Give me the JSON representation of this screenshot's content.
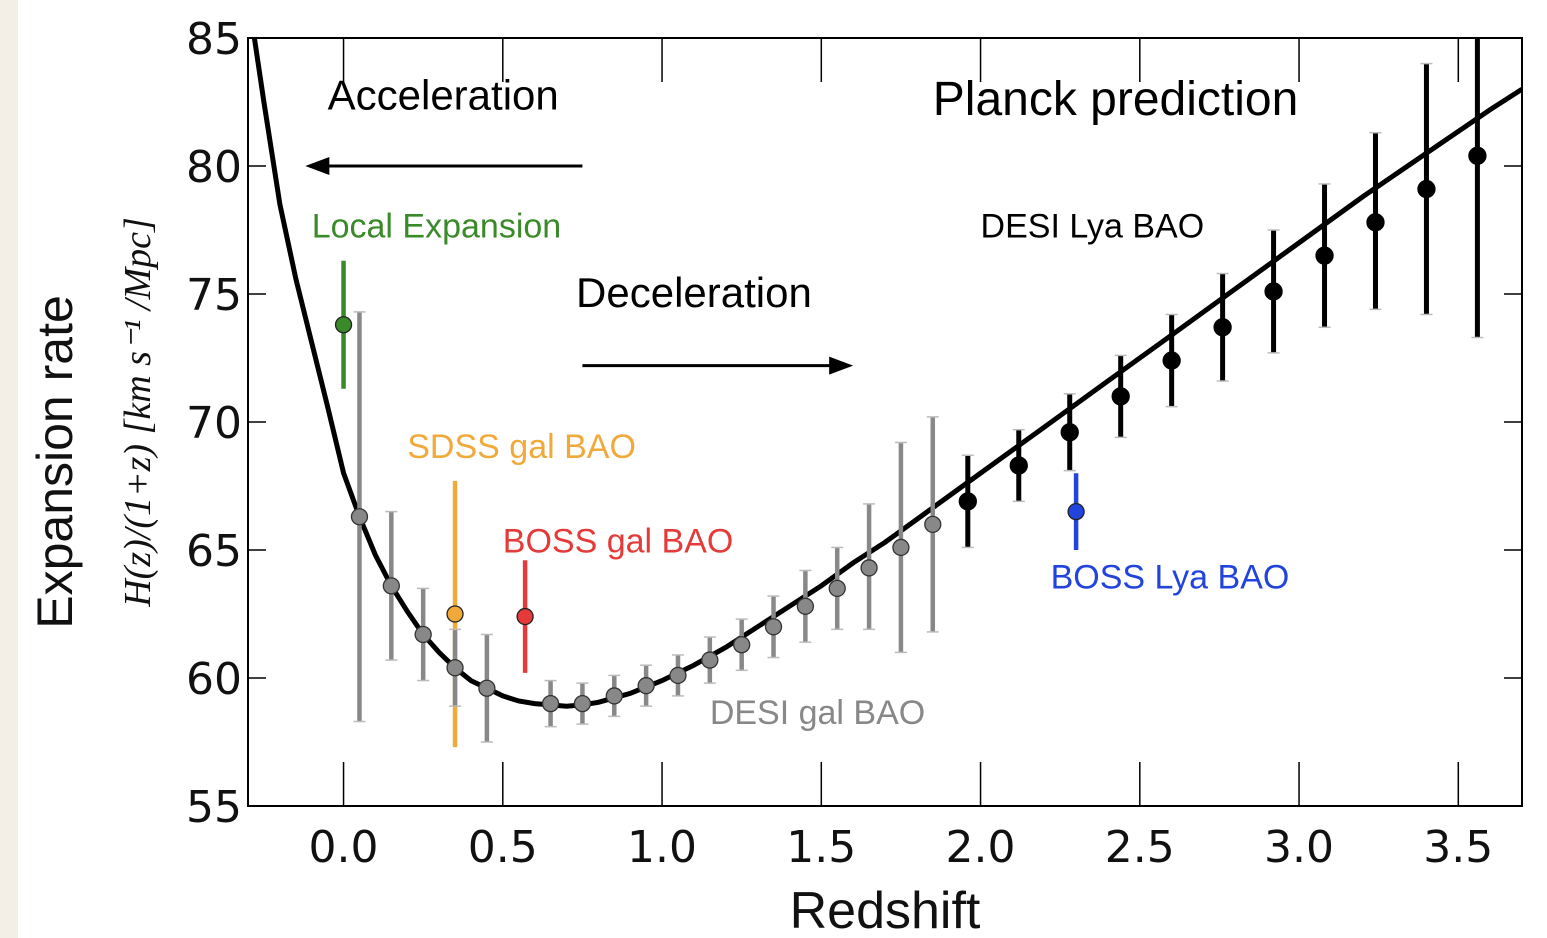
{
  "chart_data": {
    "type": "scatter",
    "xlabel": "Redshift",
    "ylabel": "Expansion rate",
    "ylabel_formula": "H(z)/(1+z) [km s⁻¹ /Mpc]",
    "xlim": [
      -0.3,
      3.7
    ],
    "ylim": [
      55,
      85
    ],
    "xticks": [
      0.0,
      0.5,
      1.0,
      1.5,
      2.0,
      2.5,
      3.0,
      3.5
    ],
    "xtick_labels": [
      "0.0",
      "0.5",
      "1.0",
      "1.5",
      "2.0",
      "2.5",
      "3.0",
      "3.5"
    ],
    "yticks": [
      55,
      60,
      65,
      70,
      75,
      80,
      85
    ],
    "ytick_labels": [
      "55",
      "60",
      "65",
      "70",
      "75",
      "80",
      "85"
    ],
    "grid": false,
    "model_curve": {
      "name": "Planck prediction",
      "color": "#000000",
      "x": [
        -0.28,
        -0.25,
        -0.2,
        -0.15,
        -0.1,
        -0.05,
        0.0,
        0.05,
        0.1,
        0.15,
        0.2,
        0.25,
        0.3,
        0.35,
        0.4,
        0.45,
        0.5,
        0.55,
        0.6,
        0.65,
        0.7,
        0.75,
        0.8,
        0.9,
        1.0,
        1.1,
        1.2,
        1.3,
        1.4,
        1.5,
        1.6,
        1.7,
        1.8,
        1.9,
        2.0,
        2.2,
        2.4,
        2.6,
        2.8,
        3.0,
        3.2,
        3.4,
        3.6,
        3.7
      ],
      "y": [
        85,
        82.5,
        78.5,
        75.6,
        73.1,
        70.6,
        68.0,
        66.3,
        64.8,
        63.6,
        62.6,
        61.7,
        61.0,
        60.4,
        59.9,
        59.6,
        59.3,
        59.1,
        59.0,
        58.95,
        58.9,
        58.95,
        59.05,
        59.4,
        59.9,
        60.5,
        61.2,
        62.0,
        62.8,
        63.6,
        64.5,
        65.3,
        66.2,
        67.1,
        68.0,
        69.8,
        71.6,
        73.4,
        75.2,
        77.0,
        78.8,
        80.5,
        82.2,
        83.0
      ]
    },
    "series": [
      {
        "name": "Local Expansion",
        "color": "#3a8a2a",
        "points": [
          {
            "x": 0.0,
            "y": 73.8,
            "lo": 71.3,
            "hi": 76.3
          }
        ]
      },
      {
        "name": "SDSS gal BAO",
        "color": "#f0a93a",
        "points": [
          {
            "x": 0.35,
            "y": 62.5,
            "lo": 57.3,
            "hi": 67.7
          }
        ]
      },
      {
        "name": "BOSS gal BAO",
        "color": "#e53a3a",
        "points": [
          {
            "x": 0.57,
            "y": 62.4,
            "lo": 60.2,
            "hi": 64.6
          }
        ]
      },
      {
        "name": "BOSS Lya BAO",
        "color": "#2244dd",
        "points": [
          {
            "x": 2.3,
            "y": 66.5,
            "lo": 65.0,
            "hi": 68.0
          }
        ]
      },
      {
        "name": "DESI gal BAO",
        "color": "#888888",
        "points": [
          {
            "x": 0.05,
            "y": 66.3,
            "lo": 58.3,
            "hi": 74.3
          },
          {
            "x": 0.15,
            "y": 63.6,
            "lo": 60.7,
            "hi": 66.5
          },
          {
            "x": 0.25,
            "y": 61.7,
            "lo": 59.9,
            "hi": 63.5
          },
          {
            "x": 0.35,
            "y": 60.4,
            "lo": 58.9,
            "hi": 61.9
          },
          {
            "x": 0.45,
            "y": 59.6,
            "lo": 57.5,
            "hi": 61.7
          },
          {
            "x": 0.65,
            "y": 59.0,
            "lo": 58.1,
            "hi": 59.9
          },
          {
            "x": 0.75,
            "y": 59.0,
            "lo": 58.2,
            "hi": 59.8
          },
          {
            "x": 0.85,
            "y": 59.3,
            "lo": 58.5,
            "hi": 60.1
          },
          {
            "x": 0.95,
            "y": 59.7,
            "lo": 58.9,
            "hi": 60.5
          },
          {
            "x": 1.05,
            "y": 60.1,
            "lo": 59.3,
            "hi": 60.9
          },
          {
            "x": 1.15,
            "y": 60.7,
            "lo": 59.8,
            "hi": 61.6
          },
          {
            "x": 1.25,
            "y": 61.3,
            "lo": 60.3,
            "hi": 62.3
          },
          {
            "x": 1.35,
            "y": 62.0,
            "lo": 60.8,
            "hi": 63.2
          },
          {
            "x": 1.45,
            "y": 62.8,
            "lo": 61.4,
            "hi": 64.2
          },
          {
            "x": 1.55,
            "y": 63.5,
            "lo": 61.9,
            "hi": 65.1
          },
          {
            "x": 1.65,
            "y": 64.3,
            "lo": 61.9,
            "hi": 66.8
          },
          {
            "x": 1.75,
            "y": 65.1,
            "lo": 61.0,
            "hi": 69.2
          },
          {
            "x": 1.85,
            "y": 66.0,
            "lo": 61.8,
            "hi": 70.2
          }
        ]
      },
      {
        "name": "DESI Lya BAO",
        "color": "#000000",
        "points": [
          {
            "x": 1.96,
            "y": 66.9,
            "lo": 65.1,
            "hi": 68.7
          },
          {
            "x": 2.12,
            "y": 68.3,
            "lo": 66.9,
            "hi": 69.7
          },
          {
            "x": 2.28,
            "y": 69.6,
            "lo": 68.1,
            "hi": 71.1
          },
          {
            "x": 2.44,
            "y": 71.0,
            "lo": 69.4,
            "hi": 72.6
          },
          {
            "x": 2.6,
            "y": 72.4,
            "lo": 70.6,
            "hi": 74.2
          },
          {
            "x": 2.76,
            "y": 73.7,
            "lo": 71.6,
            "hi": 75.8
          },
          {
            "x": 2.92,
            "y": 75.1,
            "lo": 72.7,
            "hi": 77.5
          },
          {
            "x": 3.08,
            "y": 76.5,
            "lo": 73.7,
            "hi": 79.3
          },
          {
            "x": 3.24,
            "y": 77.8,
            "lo": 74.4,
            "hi": 81.3
          },
          {
            "x": 3.4,
            "y": 79.1,
            "lo": 74.2,
            "hi": 84.0
          },
          {
            "x": 3.56,
            "y": 80.4,
            "lo": 73.3,
            "hi": 87.5
          }
        ]
      }
    ],
    "annotations": [
      {
        "text": "Acceleration",
        "x": -0.05,
        "y": 82.2,
        "color": "#000000"
      },
      {
        "text": "Deceleration",
        "x": 0.73,
        "y": 74.5,
        "color": "#000000"
      },
      {
        "text": "Planck prediction",
        "x": 1.85,
        "y": 82.0,
        "color": "#000000"
      },
      {
        "text": "Local Expansion",
        "x": -0.1,
        "y": 77.2,
        "color": "#3a8a2a"
      },
      {
        "text": "DESI Lya BAO",
        "x": 2.0,
        "y": 77.2,
        "color": "#000000"
      },
      {
        "text": "SDSS gal BAO",
        "x": 0.2,
        "y": 68.6,
        "color": "#f0a93a"
      },
      {
        "text": "BOSS gal BAO",
        "x": 0.5,
        "y": 64.9,
        "color": "#e53a3a"
      },
      {
        "text": "BOSS Lya BAO",
        "x": 2.22,
        "y": 63.5,
        "color": "#2244dd"
      },
      {
        "text": "DESI gal BAO",
        "x": 1.15,
        "y": 58.2,
        "color": "#888888"
      }
    ],
    "arrows": [
      {
        "name": "acceleration-arrow",
        "from": [
          0.75,
          80.0
        ],
        "to": [
          -0.12,
          80.0
        ]
      },
      {
        "name": "deceleration-arrow",
        "from": [
          0.75,
          72.2
        ],
        "to": [
          1.6,
          72.2
        ]
      }
    ]
  }
}
